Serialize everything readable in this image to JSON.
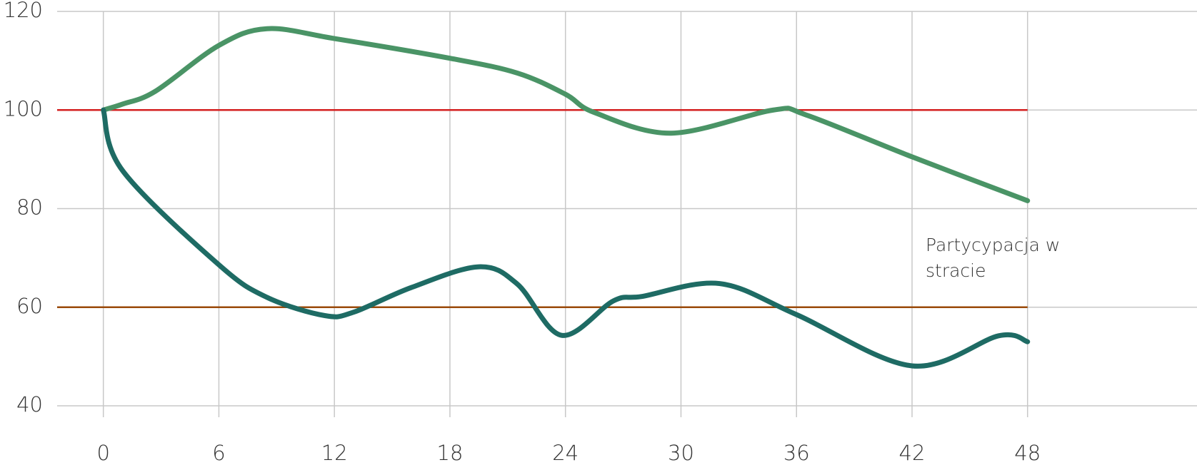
{
  "chart_data": {
    "type": "line",
    "annotation": "Partycypacja w stracie",
    "xlim": [
      -2.4,
      56.8
    ],
    "ylim": [
      40,
      120
    ],
    "xticks": [
      0,
      6,
      12,
      18,
      24,
      30,
      36,
      42,
      48
    ],
    "yticks": [
      40,
      60,
      80,
      100,
      120
    ],
    "grid": true,
    "reference_lines": [
      {
        "value": 100,
        "color": "#d42020"
      },
      {
        "value": 60,
        "color": "#9a4a0a"
      }
    ],
    "reference_range": [
      0,
      48
    ],
    "series": [
      {
        "color": "#4a9466",
        "x": [
          0,
          1,
          2.7,
          6,
          8.5,
          12,
          18,
          21.5,
          24,
          25.5,
          29.5,
          34.8,
          36.5,
          42,
          48
        ],
        "values": [
          100,
          101.2,
          103.8,
          113.1,
          116.5,
          114.5,
          110.5,
          107.5,
          103.2,
          99.5,
          95.3,
          100,
          99,
          90.5,
          81.6
        ]
      },
      {
        "color": "#1e6b64",
        "x": [
          0,
          1,
          6,
          8.5,
          11.5,
          13,
          16,
          19.5,
          21.5,
          23.8,
          26.5,
          28,
          32,
          36,
          42,
          46.5,
          48
        ],
        "values": [
          100,
          87.7,
          68.6,
          62,
          58.3,
          59,
          64,
          68.2,
          64.7,
          54.3,
          61.3,
          62.2,
          64.8,
          58.5,
          48.1,
          54.2,
          53
        ]
      }
    ]
  }
}
